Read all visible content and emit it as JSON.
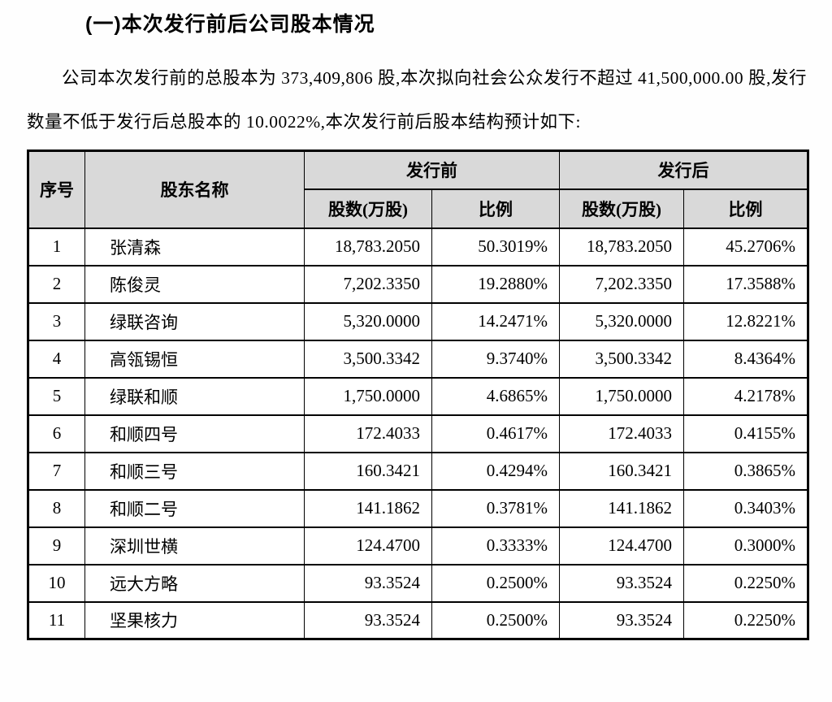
{
  "doc": {
    "heading": "(一)本次发行前后公司股本情况",
    "paragraph": "公司本次发行前的总股本为 373,409,806 股,本次拟向社会公众发行不超过 41,500,000.00 股,发行数量不低于发行后总股本的 10.0022%,本次发行前后股本结构预计如下:"
  },
  "table": {
    "headers": {
      "col_index": "序号",
      "col_name": "股东名称",
      "group_before": "发行前",
      "group_after": "发行后",
      "col_shares": "股数(万股)",
      "col_ratio": "比例"
    },
    "rows": [
      {
        "index": "1",
        "name": "张清森",
        "shares_before": "18,783.2050",
        "ratio_before": "50.3019%",
        "shares_after": "18,783.2050",
        "ratio_after": "45.2706%"
      },
      {
        "index": "2",
        "name": "陈俊灵",
        "shares_before": "7,202.3350",
        "ratio_before": "19.2880%",
        "shares_after": "7,202.3350",
        "ratio_after": "17.3588%"
      },
      {
        "index": "3",
        "name": "绿联咨询",
        "shares_before": "5,320.0000",
        "ratio_before": "14.2471%",
        "shares_after": "5,320.0000",
        "ratio_after": "12.8221%"
      },
      {
        "index": "4",
        "name": "高瓴锡恒",
        "shares_before": "3,500.3342",
        "ratio_before": "9.3740%",
        "shares_after": "3,500.3342",
        "ratio_after": "8.4364%"
      },
      {
        "index": "5",
        "name": "绿联和顺",
        "shares_before": "1,750.0000",
        "ratio_before": "4.6865%",
        "shares_after": "1,750.0000",
        "ratio_after": "4.2178%"
      },
      {
        "index": "6",
        "name": "和顺四号",
        "shares_before": "172.4033",
        "ratio_before": "0.4617%",
        "shares_after": "172.4033",
        "ratio_after": "0.4155%"
      },
      {
        "index": "7",
        "name": "和顺三号",
        "shares_before": "160.3421",
        "ratio_before": "0.4294%",
        "shares_after": "160.3421",
        "ratio_after": "0.3865%"
      },
      {
        "index": "8",
        "name": "和顺二号",
        "shares_before": "141.1862",
        "ratio_before": "0.3781%",
        "shares_after": "141.1862",
        "ratio_after": "0.3403%"
      },
      {
        "index": "9",
        "name": "深圳世横",
        "shares_before": "124.4700",
        "ratio_before": "0.3333%",
        "shares_after": "124.4700",
        "ratio_after": "0.3000%"
      },
      {
        "index": "10",
        "name": "远大方略",
        "shares_before": "93.3524",
        "ratio_before": "0.2500%",
        "shares_after": "93.3524",
        "ratio_after": "0.2250%"
      },
      {
        "index": "11",
        "name": "坚果核力",
        "shares_before": "93.3524",
        "ratio_before": "0.2500%",
        "shares_after": "93.3524",
        "ratio_after": "0.2250%"
      }
    ]
  },
  "colors": {
    "header_bg": "#d9d9d9",
    "border": "#000000",
    "text": "#000000"
  }
}
